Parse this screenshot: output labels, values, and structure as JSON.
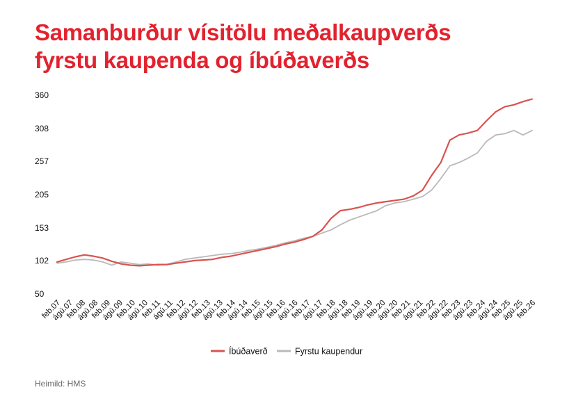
{
  "title_lines": [
    "Samanburður vísitölu meðalkaupverðs",
    "fyrstu kaupenda og íbúðaverðs"
  ],
  "source": "Heimild: HMS",
  "colors": {
    "title": "#e2222e",
    "ibudaverd": "#d9534f",
    "fyrstu": "#b9b9b9",
    "text": "#111111"
  },
  "chart_data": {
    "type": "line",
    "title": "Samanburður vísitölu meðalkaupverðs fyrstu kaupenda og íbúðaverðs",
    "xlabel": "",
    "ylabel": "",
    "y_ticks": [
      50,
      102,
      153,
      205,
      257,
      308,
      360
    ],
    "ylim": [
      50,
      360
    ],
    "grid": false,
    "legend_position": "bottom",
    "x_tick_labels": [
      "feb.07",
      "ágú.07",
      "feb.08",
      "ágú.08",
      "feb.09",
      "ágú.09",
      "feb.10",
      "ágú.10",
      "feb.11",
      "ágú.11",
      "feb.12",
      "ágú.12",
      "feb.13",
      "ágú.13",
      "feb.14",
      "ágú.14",
      "feb.15",
      "ágú.15",
      "feb.16",
      "ágú.16",
      "feb.17",
      "ágú.17",
      "feb.18",
      "ágú.18",
      "feb.19",
      "ágú.19",
      "feb.20",
      "ágú.20",
      "feb.21",
      "ágú.21",
      "feb.22",
      "ágú.22",
      "feb.23",
      "ágú.23",
      "feb.24",
      "ágú.24",
      "feb.25",
      "ágú.25",
      "feb.26"
    ],
    "series": [
      {
        "name": "Íbúðaverð",
        "values": [
          100,
          104,
          108,
          111,
          109,
          106,
          101,
          97,
          95,
          94,
          95,
          96,
          96,
          98,
          100,
          102,
          103,
          104,
          107,
          109,
          112,
          115,
          118,
          121,
          124,
          128,
          131,
          135,
          140,
          150,
          168,
          180,
          182,
          185,
          189,
          192,
          194,
          196,
          198,
          203,
          212,
          235,
          255,
          290,
          298,
          301,
          305,
          320,
          334,
          342,
          345,
          350,
          354
        ]
      },
      {
        "name": "Fyrstu kaupendur",
        "values": [
          98,
          100,
          103,
          104,
          103,
          100,
          95,
          100,
          98,
          96,
          97,
          95,
          96,
          100,
          104,
          106,
          108,
          110,
          112,
          113,
          115,
          118,
          120,
          123,
          126,
          130,
          133,
          137,
          140,
          145,
          150,
          158,
          165,
          170,
          175,
          180,
          188,
          192,
          194,
          198,
          202,
          212,
          230,
          250,
          255,
          262,
          270,
          288,
          298,
          300,
          305,
          298,
          305
        ]
      }
    ]
  }
}
